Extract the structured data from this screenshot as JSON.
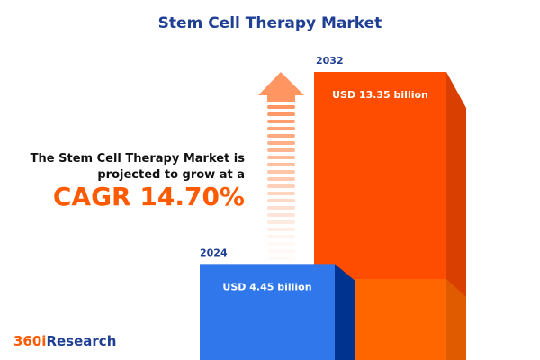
{
  "title": "Stem Cell Therapy Market",
  "description_line1": "The Stem Cell Therapy Market is",
  "description_line2": "projected to grow at a",
  "cagr_text": "CAGR 14.70%",
  "logo": {
    "num": "360i",
    "word": "Research"
  },
  "colors": {
    "title": "#1f3f94",
    "accent": "#ff5a00",
    "bar_2024": "#2f77ea",
    "bar_2032": "#ff4d00"
  },
  "chart_data": {
    "type": "bar",
    "categories": [
      "2024",
      "2032"
    ],
    "values": [
      4.45,
      13.35
    ],
    "data_labels": [
      "USD 4.45 billion",
      "USD 13.35 billion"
    ],
    "cagr": "14.70%"
  }
}
